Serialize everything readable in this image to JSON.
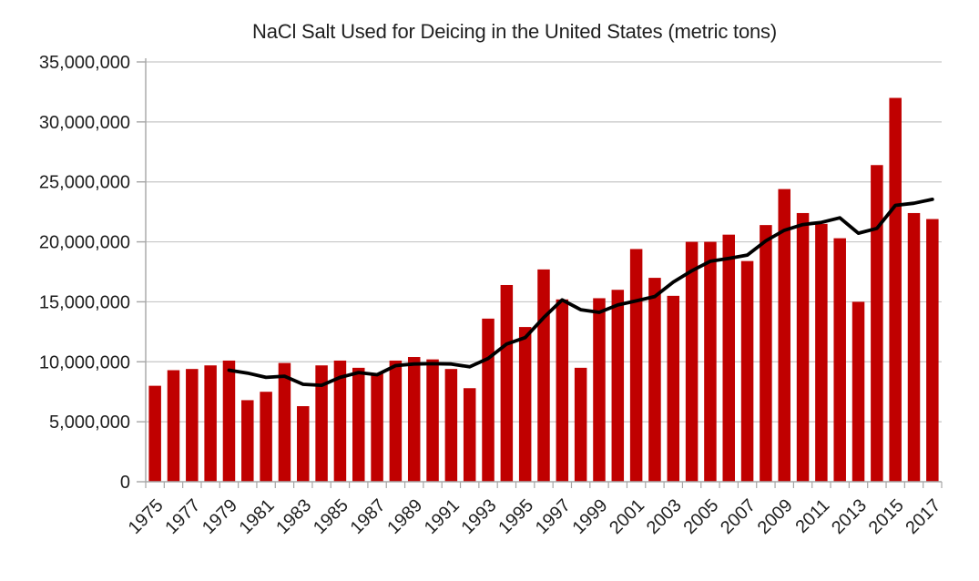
{
  "chart_data": {
    "type": "bar",
    "title": "NaCl Salt Used for Deicing in the United States (metric tons)",
    "categories": [
      1975,
      1976,
      1977,
      1978,
      1979,
      1980,
      1981,
      1982,
      1983,
      1984,
      1985,
      1986,
      1987,
      1988,
      1989,
      1990,
      1991,
      1992,
      1993,
      1994,
      1995,
      1996,
      1997,
      1998,
      1999,
      2000,
      2001,
      2002,
      2003,
      2004,
      2005,
      2006,
      2007,
      2008,
      2009,
      2010,
      2011,
      2012,
      2013,
      2014,
      2015,
      2016,
      2017
    ],
    "x_axis": {
      "tick_labels": [
        "1975",
        "1977",
        "1979",
        "1981",
        "1983",
        "1985",
        "1987",
        "1989",
        "1991",
        "1993",
        "1995",
        "1997",
        "1999",
        "2001",
        "2003",
        "2005",
        "2007",
        "2009",
        "2011",
        "2013",
        "2015",
        "2017"
      ],
      "label_rotation_deg": 45
    },
    "y_axis": {
      "min": 0,
      "max": 35000000,
      "step": 5000000,
      "tick_labels": [
        "0",
        "5,000,000",
        "10,000,000",
        "15,000,000",
        "20,000,000",
        "25,000,000",
        "30,000,000",
        "35,000,000"
      ]
    },
    "grid": true,
    "legend_position": "none",
    "series": [
      {
        "name": "annual-nacl-salt-used",
        "type": "bar",
        "color": "#C00000",
        "values": [
          8000000,
          9300000,
          9400000,
          9700000,
          10100000,
          6800000,
          7500000,
          9900000,
          6300000,
          9700000,
          10100000,
          9500000,
          9000000,
          10100000,
          10400000,
          10200000,
          9400000,
          7800000,
          13600000,
          16400000,
          12900000,
          17700000,
          15200000,
          9500000,
          15300000,
          16000000,
          19400000,
          17000000,
          15500000,
          20000000,
          20000000,
          20600000,
          18400000,
          21400000,
          24400000,
          22400000,
          21500000,
          20300000,
          15000000,
          26400000,
          32000000,
          22400000,
          21900000
        ]
      },
      {
        "name": "trend-line",
        "type": "line",
        "color": "#000000",
        "first_year": 1979,
        "values": [
          9300000,
          9060000,
          8700000,
          8800000,
          8120000,
          8040000,
          8700000,
          9100000,
          8920000,
          9680000,
          9820000,
          9840000,
          9820000,
          9580000,
          10280000,
          11480000,
          12020000,
          13680000,
          15160000,
          14340000,
          14120000,
          14740000,
          15080000,
          15440000,
          16640000,
          17580000,
          18380000,
          18620000,
          18900000,
          20080000,
          20960000,
          21440000,
          21620000,
          22000000,
          20720000,
          21120000,
          23040000,
          23220000,
          23540000
        ]
      }
    ],
    "colors": {
      "background": "#FFFFFF",
      "gridline": "#C6C6C6",
      "axis": "#A6A6A6",
      "tick_label": "#1f1f1f",
      "title": "#1f1f1f"
    }
  }
}
